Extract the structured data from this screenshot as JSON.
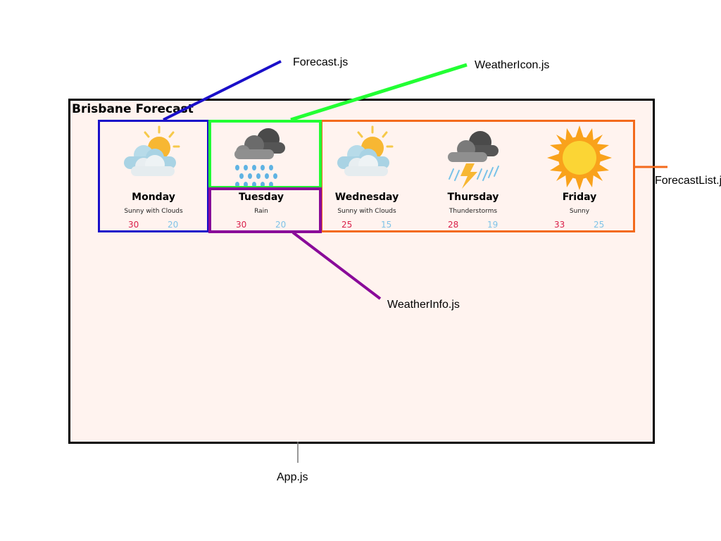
{
  "app": {
    "title": "Brisbane Forecast"
  },
  "forecast": [
    {
      "day": "Monday",
      "description": "Sunny with Clouds",
      "high": "30",
      "low": "20",
      "icon": "sun-behind-clouds-icon"
    },
    {
      "day": "Tuesday",
      "description": "Rain",
      "high": "30",
      "low": "20",
      "icon": "rain-cloud-icon"
    },
    {
      "day": "Wednesday",
      "description": "Sunny with Clouds",
      "high": "25",
      "low": "15",
      "icon": "sun-behind-clouds-icon"
    },
    {
      "day": "Thursday",
      "description": "Thunderstorms",
      "high": "28",
      "low": "19",
      "icon": "thunderstorm-icon"
    },
    {
      "day": "Friday",
      "description": "Sunny",
      "high": "33",
      "low": "25",
      "icon": "sun-icon"
    }
  ],
  "annotations": {
    "forecast": "Forecast.js",
    "weather_icon": "WeatherIcon.js",
    "forecast_list": "ForecastList.j",
    "weather_info": "WeatherInfo.js",
    "app": "App.js"
  },
  "colors": {
    "forecast": "#1a0fc9",
    "weather_icon": "#22ff33",
    "forecast_list": "#f36a1c",
    "weather_info": "#8a0a99",
    "app": "#000000",
    "high_temp": "#d9204a",
    "low_temp": "#7ec3e8",
    "app_background": "#fff3ef"
  }
}
